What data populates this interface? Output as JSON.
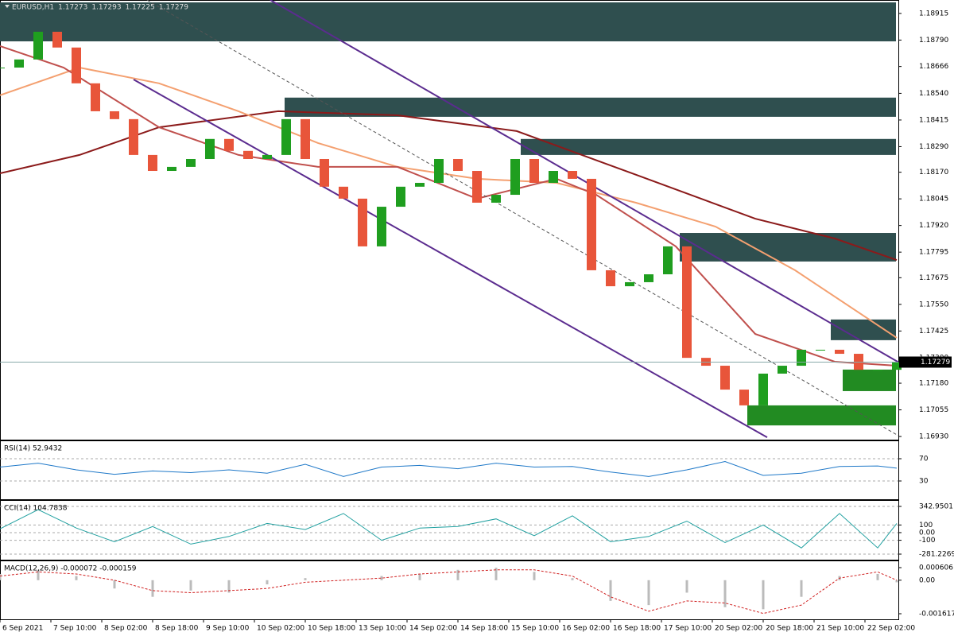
{
  "chart_data": [
    {
      "type": "candlestick",
      "title": "EURUSD,H1",
      "open": 1.17273,
      "high": 1.17293,
      "low": 1.17225,
      "close": 1.17279,
      "up_color": "#1f9e1f",
      "down_color": "#e8553a",
      "xlim": [
        0,
        282.5
      ],
      "xticks": [
        {
          "value": 0,
          "label": "6 Sep 2021"
        },
        {
          "value": 16,
          "label": "7 Sep 10:00"
        },
        {
          "value": 32,
          "label": "8 Sep 02:00"
        },
        {
          "value": 48,
          "label": "8 Sep 18:00"
        },
        {
          "value": 64,
          "label": "9 Sep 10:00"
        },
        {
          "value": 80,
          "label": "10 Sep 02:00"
        },
        {
          "value": 96,
          "label": "10 Sep 18:00"
        },
        {
          "value": 112,
          "label": "13 Sep 10:00"
        },
        {
          "value": 128,
          "label": "14 Sep 02:00"
        },
        {
          "value": 144,
          "label": "14 Sep 18:00"
        },
        {
          "value": 160,
          "label": "15 Sep 10:00"
        },
        {
          "value": 176,
          "label": "16 Sep 02:00"
        },
        {
          "value": 192,
          "label": "16 Sep 18:00"
        },
        {
          "value": 208,
          "label": "17 Sep 10:00"
        },
        {
          "value": 224,
          "label": "20 Sep 02:00"
        },
        {
          "value": 240,
          "label": "20 Sep 18:00"
        },
        {
          "value": 256,
          "label": "21 Sep 10:00"
        },
        {
          "value": 272,
          "label": "22 Sep 02:00"
        }
      ],
      "ylim": [
        1.16919,
        1.18978
      ],
      "yticks": [
        1.18915,
        {
          "value": 1.1879,
          "label": "1.18790"
        },
        1.18666,
        {
          "value": 1.1854,
          "label": "1.18540"
        },
        1.18415,
        {
          "value": 1.1829,
          "label": "1.18290"
        },
        {
          "value": 1.1817,
          "label": "1.18170"
        },
        1.18045,
        {
          "value": 1.1792,
          "label": "1.17920"
        },
        1.17795,
        1.17675,
        {
          "value": 1.1755,
          "label": "1.17550"
        },
        1.17425,
        {
          "value": 1.173,
          "label": "1.17300"
        },
        {
          "value": 1.1718,
          "label": "1.17180"
        },
        1.17055,
        {
          "value": 1.1693,
          "label": "1.16930"
        }
      ],
      "x": [
        0,
        6,
        12,
        18,
        24,
        30,
        36,
        42,
        48,
        54,
        60,
        66,
        72,
        78,
        84,
        90,
        96,
        102,
        108,
        114,
        120,
        126,
        132,
        138,
        144,
        150,
        156,
        162,
        168,
        174,
        180,
        186,
        192,
        198,
        204,
        210,
        216,
        222,
        228,
        234,
        240,
        246,
        252,
        258,
        264,
        270,
        276,
        282
      ],
      "values": [
        1.18661,
        1.18699,
        1.18829,
        1.18755,
        1.18587,
        1.18456,
        1.18419,
        1.18251,
        1.18176,
        1.18195,
        1.18232,
        1.18326,
        1.1827,
        1.18232,
        1.18251,
        1.18419,
        1.18232,
        1.18102,
        1.18046,
        1.17822,
        1.18008,
        1.18102,
        1.1812,
        1.18232,
        1.18176,
        1.18027,
        1.18064,
        1.18232,
        1.1812,
        1.18176,
        1.18139,
        1.1771,
        1.17635,
        1.17654,
        1.17691,
        1.17822,
        1.17299,
        1.17262,
        1.1715,
        1.17076,
        1.17225,
        1.17262,
        1.17337,
        1.17337,
        1.17318,
        1.17243,
        1.17243,
        1.17279
      ],
      "zones": [
        {
          "color": "#2f4f4f",
          "x": [
            0,
            281.75
          ],
          "y": [
            1.18784,
            1.18967
          ]
        },
        {
          "color": "#2f4f4f",
          "x": [
            89.5,
            281.75
          ],
          "y": [
            1.1843,
            1.1852
          ]
        },
        {
          "color": "#2f4f4f",
          "x": [
            163.75,
            281.75
          ],
          "y": [
            1.18251,
            1.18326
          ]
        },
        {
          "color": "#2f4f4f",
          "x": [
            213.75,
            281.75
          ],
          "y": [
            1.17751,
            1.17885
          ]
        },
        {
          "color": "#2f4f4f",
          "x": [
            261.25,
            281.75
          ],
          "y": [
            1.17382,
            1.17479
          ]
        },
        {
          "color": "#228b22",
          "x": [
            265,
            281.75
          ],
          "y": [
            1.17143,
            1.17244
          ]
        },
        {
          "color": "#228b22",
          "x": [
            235,
            281.75
          ],
          "y": [
            1.16982,
            1.17076
          ]
        }
      ],
      "overlays": [
        {
          "color": "#8b1a1a",
          "x": [
            0,
            25,
            50,
            87.5,
            125,
            162.5,
            200,
            237.5,
            262.5,
            282
          ],
          "values": [
            1.18165,
            1.18251,
            1.18381,
            1.18456,
            1.18437,
            1.18363,
            1.18158,
            1.17952,
            1.17859,
            1.17758
          ]
        },
        {
          "color": "#f4a070",
          "x": [
            0,
            25,
            50,
            75,
            100,
            125,
            150,
            175,
            200,
            225,
            250,
            282
          ],
          "values": [
            1.18531,
            1.18661,
            1.18587,
            1.18456,
            1.18307,
            1.18195,
            1.18139,
            1.1812,
            1.18027,
            1.17915,
            1.1771,
            1.17393
          ]
        },
        {
          "color": "#c0504d",
          "x": [
            0,
            20,
            50,
            75,
            100,
            125,
            150,
            175,
            187.5,
            212.5,
            237.5,
            262.5,
            282
          ],
          "values": [
            1.18762,
            1.18661,
            1.18381,
            1.18251,
            1.18195,
            1.18195,
            1.18046,
            1.18139,
            1.18064,
            1.17822,
            1.17411,
            1.17281,
            1.17262
          ]
        }
      ],
      "lines": [
        {
          "color": "#5b2c8f",
          "dashed": false,
          "x": [
            85,
            282.5
          ],
          "y": [
            1.18978,
            1.17279
          ]
        },
        {
          "color": "#5b2c8f",
          "dashed": false,
          "x": [
            42,
            241.25
          ],
          "y": [
            1.18605,
            1.16926
          ]
        },
        {
          "color": "#555555",
          "dashed": true,
          "x": [
            46.25,
            282.5
          ],
          "y": [
            1.18978,
            1.16934
          ]
        }
      ]
    },
    {
      "type": "line",
      "title": "RSI(14) 52.9432",
      "color": "#1e78c8",
      "levels": true,
      "ylim": [
        0,
        100
      ],
      "yticks": [
        70,
        30
      ],
      "x": [
        0,
        12,
        24,
        36,
        48,
        60,
        72,
        84,
        96,
        108,
        120,
        132,
        144,
        156,
        168,
        180,
        192,
        204,
        216,
        228,
        240,
        252,
        264,
        276,
        282
      ],
      "values": [
        55,
        62,
        50,
        42,
        48,
        45,
        50,
        44,
        60,
        38,
        55,
        58,
        52,
        62,
        55,
        56,
        46,
        38,
        50,
        65,
        40,
        44,
        56,
        57,
        53
      ]
    },
    {
      "type": "line",
      "title": "CCI(14) 104.7838",
      "color": "#20a0a0",
      "levels": true,
      "ylim": [
        -281.2269,
        342.9501
      ],
      "yticks": [
        342.9501,
        100,
        {
          "value": 0,
          "label": "0.00"
        },
        -100,
        -281.2269
      ],
      "x": [
        0,
        12,
        24,
        36,
        48,
        60,
        72,
        84,
        96,
        108,
        120,
        132,
        144,
        156,
        168,
        180,
        192,
        204,
        216,
        228,
        240,
        252,
        264,
        276,
        282
      ],
      "values": [
        50,
        300,
        60,
        -120,
        80,
        -150,
        -50,
        120,
        40,
        250,
        -100,
        60,
        80,
        180,
        -40,
        220,
        -120,
        -50,
        150,
        -130,
        100,
        -200,
        250,
        -200,
        120
      ]
    },
    {
      "type": "macd",
      "title": "MACD(12,26,9) -0.000072 -0.000159",
      "color": "#bbbbbb",
      "signal_color": "#d02020",
      "levels": false,
      "ylim": [
        -0.001617,
        0.000606
      ],
      "yticks": [
        0.000606,
        {
          "value": 0,
          "label": "0.00"
        },
        -0.001617
      ],
      "x": [
        0,
        12,
        24,
        36,
        48,
        60,
        72,
        84,
        96,
        108,
        120,
        132,
        144,
        156,
        168,
        180,
        192,
        204,
        216,
        228,
        240,
        252,
        264,
        276,
        282
      ],
      "values": [
        0.0003,
        0.0005,
        0.0002,
        -0.0004,
        -0.0008,
        -0.0005,
        -0.0006,
        -0.0002,
        0.0001,
        0,
        0.0002,
        0.0003,
        0.0005,
        0.0006,
        0.0004,
        0.0001,
        -0.001,
        -0.0012,
        -0.0006,
        -0.0013,
        -0.0014,
        -0.0008,
        0.0002,
        0.0003,
        -0.0001
      ],
      "signal": [
        0.0002,
        0.0004,
        0.0003,
        0,
        -0.0005,
        -0.0006,
        -0.0005,
        -0.0004,
        -0.0001,
        0,
        0.0001,
        0.0003,
        0.0004,
        0.0005,
        0.0005,
        0.0002,
        -0.0008,
        -0.0015,
        -0.001,
        -0.0011,
        -0.0016,
        -0.0012,
        0.0001,
        0.0004,
        0
      ]
    }
  ]
}
